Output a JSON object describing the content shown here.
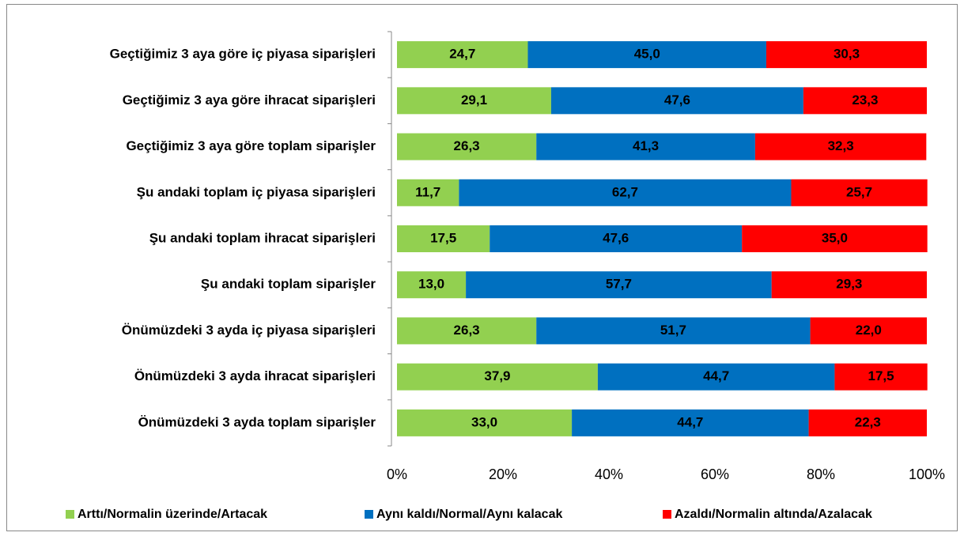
{
  "chart_data": {
    "type": "stacked-bar-horizontal",
    "categories": [
      "Geçtiğimiz 3 aya göre iç piyasa siparişleri",
      "Geçtiğimiz 3 aya göre ihracat siparişleri",
      "Geçtiğimiz 3 aya göre toplam siparişler",
      "Şu andaki toplam iç piyasa siparişleri",
      "Şu andaki toplam ihracat siparişleri",
      "Şu andaki toplam siparişler",
      "Önümüzdeki 3 ayda iç piyasa siparişleri",
      "Önümüzdeki 3 ayda ihracat siparişleri",
      "Önümüzdeki 3 ayda toplam siparişler"
    ],
    "series": [
      {
        "name": "Arttı/Normalin üzerinde/Artacak",
        "color": "#92d050",
        "values": [
          24.7,
          29.1,
          26.3,
          11.7,
          17.5,
          13.0,
          26.3,
          37.9,
          33.0
        ],
        "value_labels": [
          "24,7",
          "29,1",
          "26,3",
          "11,7",
          "17,5",
          "13,0",
          "26,3",
          "37,9",
          "33,0"
        ]
      },
      {
        "name": "Aynı kaldı/Normal/Aynı kalacak",
        "color": "#0070c0",
        "values": [
          45.0,
          47.6,
          41.3,
          62.7,
          47.6,
          57.7,
          51.7,
          44.7,
          44.7
        ],
        "value_labels": [
          "45,0",
          "47,6",
          "41,3",
          "62,7",
          "47,6",
          "57,7",
          "51,7",
          "44,7",
          "44,7"
        ]
      },
      {
        "name": "Azaldı/Normalin altında/Azalacak",
        "color": "#ff0000",
        "values": [
          30.3,
          23.3,
          32.3,
          25.7,
          35.0,
          29.3,
          22.0,
          17.5,
          22.3
        ],
        "value_labels": [
          "30,3",
          "23,3",
          "32,3",
          "25,7",
          "35,0",
          "29,3",
          "22,0",
          "17,5",
          "22,3"
        ]
      }
    ],
    "xlim": [
      0,
      100
    ],
    "xticks": [
      {
        "value": 0,
        "label": "0%"
      },
      {
        "value": 20,
        "label": "20%"
      },
      {
        "value": 40,
        "label": "40%"
      },
      {
        "value": 60,
        "label": "60%"
      },
      {
        "value": 80,
        "label": "80%"
      },
      {
        "value": 100,
        "label": "100%"
      }
    ],
    "legend": "bottom"
  }
}
